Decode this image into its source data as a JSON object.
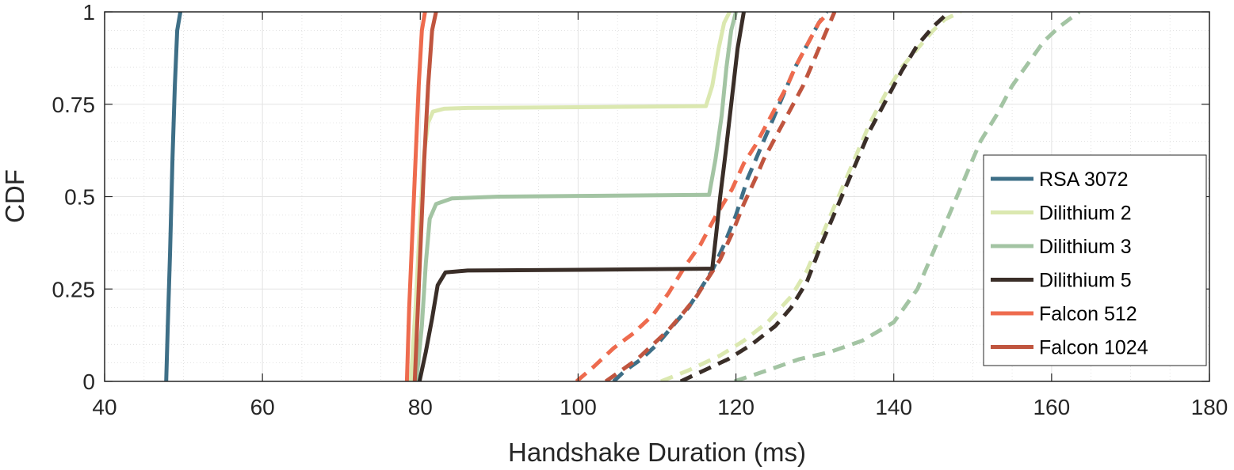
{
  "chart_data": {
    "type": "line",
    "xlabel": "Handshake Duration (ms)",
    "ylabel": "CDF",
    "xlim": [
      40,
      180
    ],
    "ylim": [
      0,
      1
    ],
    "x_ticks": [
      "40",
      "60",
      "80",
      "100",
      "120",
      "140",
      "160",
      "180"
    ],
    "y_ticks": [
      "0",
      "0.25",
      "0.5",
      "0.75",
      "1"
    ],
    "grid": true,
    "legend_position": "bottom-right",
    "legend": [
      "RSA 3072",
      "Dilithium 2",
      "Dilithium 3",
      "Dilithium 5",
      "Falcon 512",
      "Falcon 1024"
    ],
    "series": [
      {
        "name": "RSA 3072",
        "color": "#3e6f87",
        "style": "solid",
        "x": [
          47.8,
          48.0,
          48.3,
          48.6,
          48.9,
          49.2,
          49.6
        ],
        "y": [
          0,
          0.15,
          0.35,
          0.6,
          0.8,
          0.95,
          1.0
        ]
      },
      {
        "name": "Dilithium 2",
        "color": "#dbe8b0",
        "style": "solid",
        "x": [
          78.8,
          79.4,
          80.0,
          80.5,
          81.0,
          81.6,
          83,
          86,
          100,
          116.2,
          117.0,
          117.8,
          118.5,
          119.2
        ],
        "y": [
          0,
          0.2,
          0.45,
          0.62,
          0.7,
          0.73,
          0.738,
          0.74,
          0.742,
          0.745,
          0.8,
          0.9,
          0.97,
          1.0
        ]
      },
      {
        "name": "Dilithium 3",
        "color": "#a3c4a3",
        "style": "solid",
        "x": [
          79.5,
          80.2,
          80.7,
          81.2,
          82.0,
          84,
          90,
          100,
          116.6,
          117.4,
          118.2,
          118.8,
          119.4,
          120.0
        ],
        "y": [
          0,
          0.15,
          0.32,
          0.44,
          0.48,
          0.495,
          0.5,
          0.502,
          0.505,
          0.6,
          0.72,
          0.85,
          0.95,
          1.0
        ]
      },
      {
        "name": "Dilithium 5",
        "color": "#3a2e28",
        "style": "solid",
        "x": [
          79.9,
          80.7,
          81.5,
          82.2,
          83.2,
          86,
          100,
          117.0,
          117.5,
          118.0,
          118.7,
          119.4,
          120.2,
          121.0
        ],
        "y": [
          0,
          0.08,
          0.17,
          0.26,
          0.295,
          0.3,
          0.302,
          0.305,
          0.4,
          0.5,
          0.62,
          0.75,
          0.9,
          1.0
        ]
      },
      {
        "name": "Falcon 512",
        "color": "#ee6b4e",
        "style": "solid",
        "x": [
          78.3,
          78.6,
          79.0,
          79.4,
          79.8,
          80.2,
          80.6
        ],
        "y": [
          0,
          0.2,
          0.4,
          0.6,
          0.8,
          0.95,
          1.0
        ]
      },
      {
        "name": "Falcon 1024",
        "color": "#c0553f",
        "style": "solid",
        "x": [
          79.3,
          79.7,
          80.1,
          80.5,
          81.0,
          81.5,
          82.0
        ],
        "y": [
          0,
          0.2,
          0.4,
          0.6,
          0.8,
          0.95,
          1.0
        ]
      },
      {
        "name": "RSA 3072 (dashed)",
        "color": "#3e6f87",
        "style": "dashed",
        "x": [
          104.5,
          106,
          108,
          110,
          112,
          114,
          115.5,
          117,
          118.5,
          120,
          121.5,
          122.5,
          123.5,
          124.5,
          125.5,
          126.5,
          127.5,
          128.5,
          129.5,
          130.5,
          131.5
        ],
        "y": [
          0,
          0.03,
          0.06,
          0.1,
          0.15,
          0.2,
          0.25,
          0.3,
          0.37,
          0.45,
          0.55,
          0.6,
          0.65,
          0.7,
          0.75,
          0.8,
          0.85,
          0.89,
          0.93,
          0.97,
          1.0
        ]
      },
      {
        "name": "Dilithium 2 (dashed)",
        "color": "#dbe8b0",
        "style": "dashed",
        "x": [
          110.5,
          114,
          118,
          121,
          124,
          127,
          129,
          131,
          133,
          135,
          137,
          139,
          141,
          143,
          145,
          146.5,
          148.5
        ],
        "y": [
          0,
          0.03,
          0.07,
          0.11,
          0.16,
          0.23,
          0.3,
          0.4,
          0.5,
          0.6,
          0.7,
          0.78,
          0.85,
          0.9,
          0.95,
          0.98,
          1.0
        ]
      },
      {
        "name": "Dilithium 3 (dashed)",
        "color": "#a3c4a3",
        "style": "dashed",
        "x": [
          119.8,
          124,
          128,
          132,
          136,
          140,
          143,
          145,
          147,
          149,
          151,
          153,
          155,
          157,
          159,
          161,
          163.5
        ],
        "y": [
          0,
          0.03,
          0.06,
          0.08,
          0.11,
          0.16,
          0.25,
          0.35,
          0.45,
          0.55,
          0.65,
          0.72,
          0.8,
          0.86,
          0.92,
          0.96,
          1.0
        ]
      },
      {
        "name": "Dilithium 5 (dashed)",
        "color": "#3a2e28",
        "style": "dashed",
        "x": [
          113,
          116,
          119,
          122,
          125,
          127,
          129,
          131,
          133,
          135,
          137,
          139,
          141,
          143,
          145,
          147
        ],
        "y": [
          0,
          0.03,
          0.06,
          0.1,
          0.15,
          0.2,
          0.27,
          0.38,
          0.48,
          0.58,
          0.68,
          0.76,
          0.84,
          0.91,
          0.96,
          1.0
        ]
      },
      {
        "name": "Falcon 512 (dashed)",
        "color": "#ee6b4e",
        "style": "dashed",
        "x": [
          99.8,
          102,
          104.5,
          107,
          109.5,
          111.5,
          113.5,
          115.5,
          117.5,
          119.5,
          121,
          122.5,
          123.5,
          124.5,
          125.5,
          126.5,
          127.5,
          128.5,
          129.5,
          130.5,
          131.8
        ],
        "y": [
          0,
          0.04,
          0.09,
          0.13,
          0.18,
          0.24,
          0.31,
          0.37,
          0.45,
          0.52,
          0.59,
          0.64,
          0.68,
          0.72,
          0.76,
          0.8,
          0.85,
          0.89,
          0.93,
          0.97,
          1.0
        ]
      },
      {
        "name": "Falcon 1024 (dashed)",
        "color": "#c0553f",
        "style": "dashed",
        "x": [
          103.5,
          105.5,
          107.5,
          109.5,
          111.5,
          113.5,
          115,
          116.5,
          118,
          119.5,
          121,
          122.5,
          123.5,
          124.5,
          125.5,
          126.5,
          127.5,
          128.5,
          129.5,
          130.5,
          131.5,
          132.5
        ],
        "y": [
          0,
          0.03,
          0.06,
          0.1,
          0.14,
          0.19,
          0.23,
          0.28,
          0.33,
          0.4,
          0.48,
          0.55,
          0.6,
          0.64,
          0.68,
          0.72,
          0.76,
          0.8,
          0.85,
          0.9,
          0.95,
          1.0
        ]
      }
    ]
  }
}
